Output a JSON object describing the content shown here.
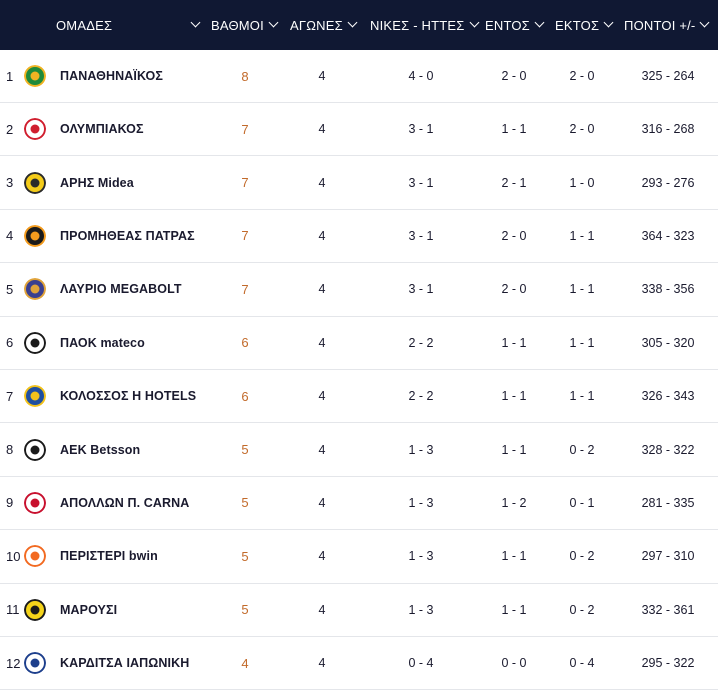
{
  "header": {
    "teams_label": "ΟΜΑΔΕΣ",
    "points_label": "ΒΑΘΜΟΙ",
    "games_label": "ΑΓΩΝΕΣ",
    "wl_label": "ΝΙΚΕΣ - ΗΤΤΕΣ",
    "home_label": "ΕΝΤΟΣ",
    "away_label": "ΕΚΤΟΣ",
    "score_label": "ΠΟΝΤΟΙ +/-"
  },
  "colors": {
    "header_bg": "#101833",
    "points": "#c26a2a",
    "row_border": "#e4e6ea"
  },
  "rows": [
    {
      "pos": "1",
      "team": "ΠΑΝΑΘΗΝΑΪΚΟΣ",
      "points": "8",
      "games": "4",
      "wl": "4 - 0",
      "home": "2 - 0",
      "away": "2 - 0",
      "score": "325 - 264",
      "logo": "panathinaikos-logo",
      "logo_color": "#1f8a3a",
      "logo_accent": "#f0b323"
    },
    {
      "pos": "2",
      "team": "ΟΛΥΜΠΙΑΚΟΣ",
      "points": "7",
      "games": "4",
      "wl": "3 - 1",
      "home": "1 - 1",
      "away": "2 - 0",
      "score": "316 - 268",
      "logo": "olympiacos-logo",
      "logo_color": "#ffffff",
      "logo_accent": "#d01e2e"
    },
    {
      "pos": "3",
      "team": "ΑΡΗΣ Midea",
      "points": "7",
      "games": "4",
      "wl": "3 - 1",
      "home": "2 - 1",
      "away": "1 - 0",
      "score": "293 - 276",
      "logo": "aris-logo",
      "logo_color": "#f4cc1a",
      "logo_accent": "#2a2a2a"
    },
    {
      "pos": "4",
      "team": "ΠΡΟΜΗΘΕΑΣ ΠΑΤΡΑΣ",
      "points": "7",
      "games": "4",
      "wl": "3 - 1",
      "home": "2 - 0",
      "away": "1 - 1",
      "score": "364 - 323",
      "logo": "promitheas-logo",
      "logo_color": "#1b1b1b",
      "logo_accent": "#f39b1e"
    },
    {
      "pos": "5",
      "team": "ΛΑΥΡΙΟ MEGABOLT",
      "points": "7",
      "games": "4",
      "wl": "3 - 1",
      "home": "2 - 0",
      "away": "1 - 1",
      "score": "338 - 356",
      "logo": "lavrio-logo",
      "logo_color": "#3a3f8f",
      "logo_accent": "#e0a33a"
    },
    {
      "pos": "6",
      "team": "ΠΑΟΚ mateco",
      "points": "6",
      "games": "4",
      "wl": "2 - 2",
      "home": "1 - 1",
      "away": "1 - 1",
      "score": "305 - 320",
      "logo": "paok-logo",
      "logo_color": "#ffffff",
      "logo_accent": "#1a1a1a"
    },
    {
      "pos": "7",
      "team": "ΚΟΛΟΣΣΟΣ Η HOTELS",
      "points": "6",
      "games": "4",
      "wl": "2 - 2",
      "home": "1 - 1",
      "away": "1 - 1",
      "score": "326 - 343",
      "logo": "kolossos-logo",
      "logo_color": "#1f4fa0",
      "logo_accent": "#f2c21b"
    },
    {
      "pos": "8",
      "team": "ΑΕΚ Betsson",
      "points": "5",
      "games": "4",
      "wl": "1 - 3",
      "home": "1 - 1",
      "away": "0 - 2",
      "score": "328 - 322",
      "logo": "aek-logo",
      "logo_color": "#ffffff",
      "logo_accent": "#1a1a1a"
    },
    {
      "pos": "9",
      "team": "ΑΠΟΛΛΩΝ Π. CARNA",
      "points": "5",
      "games": "4",
      "wl": "1 - 3",
      "home": "1 - 2",
      "away": "0 - 1",
      "score": "281 - 335",
      "logo": "apollon-logo",
      "logo_color": "#ffffff",
      "logo_accent": "#c8102e"
    },
    {
      "pos": "10",
      "team": "ΠΕΡΙΣΤΕΡΙ bwin",
      "points": "5",
      "games": "4",
      "wl": "1 - 3",
      "home": "1 - 1",
      "away": "0 - 2",
      "score": "297 - 310",
      "logo": "peristeri-logo",
      "logo_color": "#ffffff",
      "logo_accent": "#f26a21"
    },
    {
      "pos": "11",
      "team": "ΜΑΡΟΥΣΙ",
      "points": "5",
      "games": "4",
      "wl": "1 - 3",
      "home": "1 - 1",
      "away": "0 - 2",
      "score": "332 - 361",
      "logo": "marousi-logo",
      "logo_color": "#f4d31a",
      "logo_accent": "#1a1a1a"
    },
    {
      "pos": "12",
      "team": "ΚΑΡΔΙΤΣΑ ΙΑΠΩΝΙΚΗ",
      "points": "4",
      "games": "4",
      "wl": "0 - 4",
      "home": "0 - 0",
      "away": "0 - 4",
      "score": "295 - 322",
      "logo": "karditsa-logo",
      "logo_color": "#ffffff",
      "logo_accent": "#1d3f8c"
    }
  ]
}
